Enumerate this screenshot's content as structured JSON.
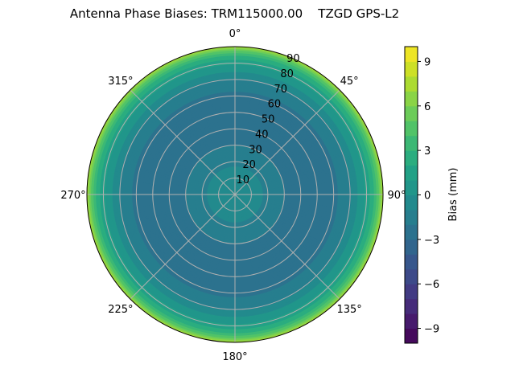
{
  "chart_data": {
    "type": "heatmap",
    "projection": "polar",
    "title": "Antenna Phase Biases: TRM115000.00    TZGD GPS-L2",
    "theta_direction": "clockwise",
    "theta_zero": "top",
    "theta_ticks": [
      "0°",
      "45°",
      "90°",
      "135°",
      "180°",
      "225°",
      "270°",
      "315°"
    ],
    "radial_ticks": [
      "10",
      "20",
      "30",
      "40",
      "50",
      "60",
      "70",
      "80",
      "90"
    ],
    "rlim": [
      0,
      90
    ],
    "grid": true,
    "colormap": "viridis",
    "colorbar": {
      "label": "Bias (mm)",
      "range": [
        -10,
        10
      ],
      "level_step": 1,
      "ticks": [
        "−9",
        "−6",
        "−3",
        "0",
        "3",
        "6",
        "9"
      ],
      "tick_values": [
        -9,
        -6,
        -3,
        0,
        3,
        6,
        9
      ]
    },
    "radial_profile": {
      "zenith_deg": [
        0,
        10,
        20,
        30,
        40,
        50,
        60,
        70,
        75,
        80,
        85,
        88,
        90
      ],
      "bias_mm": [
        0,
        -0.5,
        -1.2,
        -2.0,
        -2.6,
        -2.8,
        -2.3,
        -1.2,
        0,
        1.2,
        3.0,
        5.0,
        7.0
      ]
    }
  }
}
